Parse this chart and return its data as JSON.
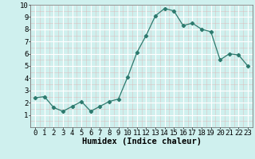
{
  "x": [
    0,
    1,
    2,
    3,
    4,
    5,
    6,
    7,
    8,
    9,
    10,
    11,
    12,
    13,
    14,
    15,
    16,
    17,
    18,
    19,
    20,
    21,
    22,
    23
  ],
  "y": [
    2.4,
    2.5,
    1.6,
    1.3,
    1.7,
    2.1,
    1.3,
    1.7,
    2.1,
    2.3,
    4.1,
    6.1,
    7.5,
    9.1,
    9.7,
    9.5,
    8.3,
    8.5,
    8.0,
    7.8,
    5.5,
    6.0,
    5.9,
    5.0
  ],
  "line_color": "#2d7a6e",
  "marker_color": "#2d7a6e",
  "bg_color": "#cff0ee",
  "grid_color": "#ffffff",
  "grid_minor_color": "#e8c8c8",
  "xlabel": "Humidex (Indice chaleur)",
  "xlim": [
    -0.5,
    23.5
  ],
  "ylim": [
    0,
    10
  ],
  "yticks": [
    1,
    2,
    3,
    4,
    5,
    6,
    7,
    8,
    9,
    10
  ],
  "xticks": [
    0,
    1,
    2,
    3,
    4,
    5,
    6,
    7,
    8,
    9,
    10,
    11,
    12,
    13,
    14,
    15,
    16,
    17,
    18,
    19,
    20,
    21,
    22,
    23
  ],
  "xlabel_fontsize": 7.5,
  "tick_fontsize": 6.5,
  "linewidth": 0.9,
  "markersize": 2.2
}
